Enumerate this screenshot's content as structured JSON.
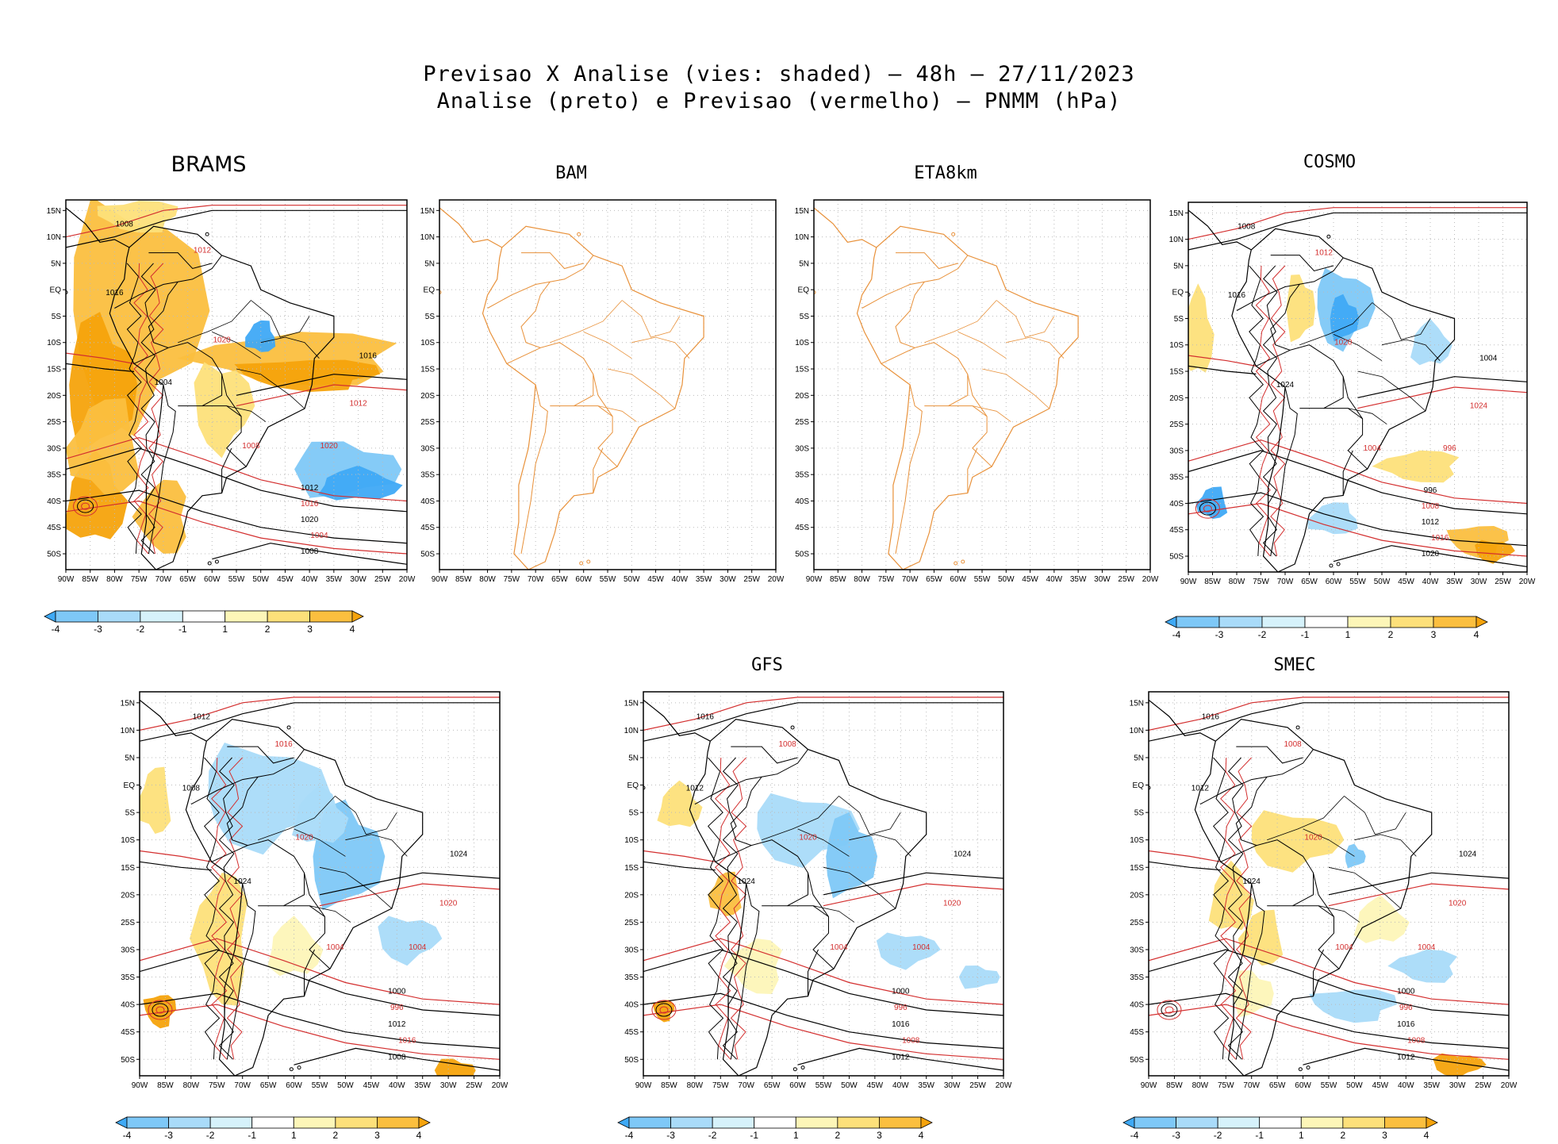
{
  "title": {
    "line1": "Previsao X Analise (vies: shaded) – 48h – 27/11/2023",
    "line2": "Analise (preto) e Previsao (vermelho) – PNMM (hPa)"
  },
  "axes": {
    "lat_labels": [
      "15N",
      "10N",
      "5N",
      "EQ",
      "5S",
      "10S",
      "15S",
      "20S",
      "25S",
      "30S",
      "35S",
      "40S",
      "45S",
      "50S"
    ],
    "lon_labels": [
      "90W",
      "85W",
      "80W",
      "75W",
      "70W",
      "65W",
      "60W",
      "55W",
      "50W",
      "45W",
      "40W",
      "35W",
      "30W",
      "25W",
      "20W"
    ]
  },
  "colorbar": {
    "labels": [
      "-4",
      "-3",
      "-2",
      "-1",
      "1",
      "2",
      "3",
      "4"
    ],
    "colors": [
      "#3fa9f5",
      "#7ec8f7",
      "#a9dbf9",
      "#d6f2fb",
      "#ffffff",
      "#fdf6b8",
      "#fde07a",
      "#fbbf3f",
      "#f5a30c"
    ]
  },
  "colors": {
    "analysis": "#000000",
    "forecast": "#d32f2f",
    "coastline": "#e8913a",
    "positive_bias": "#fbbf3f",
    "negative_bias": "#3fa9f5"
  },
  "panels": [
    {
      "id": "brams",
      "title": "BRAMS",
      "has_data": true,
      "contour_labels": [
        "1008",
        "1012",
        "1016",
        "1020",
        "1004"
      ]
    },
    {
      "id": "bam",
      "title": "BAM",
      "has_data": false,
      "contour_labels": []
    },
    {
      "id": "eta8km",
      "title": "ETA8km",
      "has_data": false,
      "contour_labels": []
    },
    {
      "id": "cosmo",
      "title": "COSMO",
      "has_data": true,
      "contour_labels": [
        "1008",
        "1012",
        "1016",
        "1020",
        "1024",
        "1004",
        "996"
      ]
    },
    {
      "id": "panel5",
      "title": "",
      "has_data": true,
      "contour_labels": [
        "1012",
        "1016",
        "1008",
        "1020",
        "1024",
        "1004",
        "1000",
        "996"
      ]
    },
    {
      "id": "gfs",
      "title": "GFS",
      "has_data": true,
      "contour_labels": [
        "1016",
        "1008",
        "1012",
        "1020",
        "1024",
        "1004",
        "1000",
        "996"
      ]
    },
    {
      "id": "smec",
      "title": "SMEC",
      "has_data": true,
      "contour_labels": [
        "1016",
        "1008",
        "1012",
        "1020",
        "1024",
        "1004",
        "1000",
        "996"
      ]
    }
  ]
}
